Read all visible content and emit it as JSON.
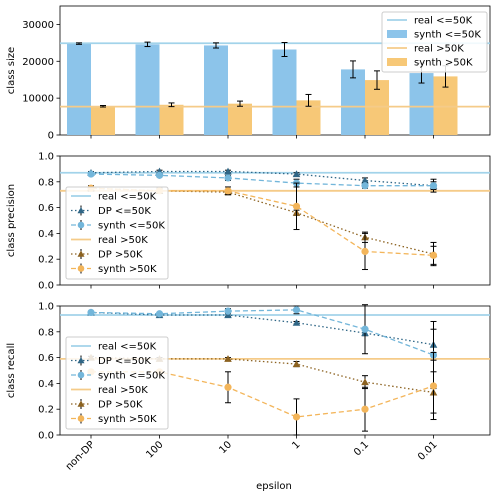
{
  "colors": {
    "blue_light": "#8cc4ea",
    "blue_line": "#a2d3ea",
    "orange_light": "#f7c877",
    "orange_line": "#f5cb89",
    "dp_blue": "#2f6686",
    "synth_blue": "#73b6da",
    "dp_orange": "#8c6220",
    "synth_orange": "#f3b55a",
    "grid": "#000000"
  },
  "xlabel": "epsilon",
  "categories": [
    "non-DP",
    "100",
    "10",
    "1",
    "0.1",
    "0.01"
  ],
  "chart_data": [
    {
      "type": "bar",
      "ylabel": "class size",
      "ylim": [
        0,
        35000
      ],
      "yticks": [
        "0",
        "10000",
        "20000",
        "30000"
      ],
      "ytick_values": [
        0,
        10000,
        20000,
        30000
      ],
      "legend_position": "top-right",
      "reference_lines": [
        {
          "name": "real <=50K",
          "value": 24900,
          "color": "#a2d3ea"
        },
        {
          "name": "real >50K",
          "value": 7700,
          "color": "#f5cb89"
        }
      ],
      "series": [
        {
          "name": "synth <=50K",
          "color": "#8cc4ea",
          "values": [
            24800,
            24600,
            24300,
            23200,
            17800,
            16800
          ],
          "errors": [
            200,
            600,
            700,
            1900,
            2300,
            2700
          ]
        },
        {
          "name": "synth >50K",
          "color": "#f7c877",
          "values": [
            7800,
            8200,
            8500,
            9400,
            14900,
            15900
          ],
          "errors": [
            200,
            500,
            700,
            1600,
            2500,
            2900
          ]
        }
      ]
    },
    {
      "type": "line",
      "ylabel": "class precision",
      "ylim": [
        0,
        1.0
      ],
      "yticks": [
        "0.0",
        "0.2",
        "0.4",
        "0.6",
        "0.8",
        "1.0"
      ],
      "ytick_values": [
        0,
        0.2,
        0.4,
        0.6,
        0.8,
        1.0
      ],
      "legend_position": "center-left",
      "reference_lines": [
        {
          "name": "real <=50K",
          "value": 0.87,
          "color": "#a2d3ea"
        },
        {
          "name": "real >50K",
          "value": 0.73,
          "color": "#f5cb89"
        }
      ],
      "series": [
        {
          "name": "DP <=50K",
          "marker": "triangle",
          "style": "dotted",
          "color": "#2f6686",
          "values": [
            0.87,
            0.88,
            0.88,
            0.86,
            0.81,
            0.77
          ],
          "errors": [
            0.01,
            0.01,
            0.01,
            0.01,
            0.02,
            0.03
          ]
        },
        {
          "name": "synth <=50K",
          "marker": "circle",
          "style": "dashed",
          "color": "#73b6da",
          "values": [
            0.86,
            0.85,
            0.83,
            0.79,
            0.77,
            0.77
          ],
          "errors": [
            0.01,
            0.01,
            0.02,
            0.03,
            0.02,
            0.05
          ]
        },
        {
          "name": "DP >50K",
          "marker": "triangle",
          "style": "dotted",
          "color": "#8c6220",
          "values": [
            0.75,
            0.73,
            0.72,
            0.56,
            0.37,
            0.24
          ],
          "errors": [
            0.01,
            0.02,
            0.02,
            0.02,
            0.04,
            0.09
          ]
        },
        {
          "name": "synth >50K",
          "marker": "circle",
          "style": "dashed",
          "color": "#f3b55a",
          "values": [
            0.75,
            0.73,
            0.73,
            0.61,
            0.26,
            0.23
          ],
          "errors": [
            0.02,
            0.02,
            0.03,
            0.18,
            0.14,
            0.07
          ]
        }
      ]
    },
    {
      "type": "line",
      "ylabel": "class recall",
      "ylim": [
        0,
        1.0
      ],
      "yticks": [
        "0.0",
        "0.2",
        "0.4",
        "0.6",
        "0.8",
        "1.0"
      ],
      "ytick_values": [
        0,
        0.2,
        0.4,
        0.6,
        0.8,
        1.0
      ],
      "legend_position": "center-left",
      "reference_lines": [
        {
          "name": "real <=50K",
          "value": 0.93,
          "color": "#a2d3ea"
        },
        {
          "name": "real >50K",
          "value": 0.59,
          "color": "#f5cb89"
        }
      ],
      "series": [
        {
          "name": "DP <=50K",
          "marker": "triangle",
          "style": "dotted",
          "color": "#2f6686",
          "values": [
            0.95,
            0.93,
            0.93,
            0.87,
            0.79,
            0.7
          ],
          "errors": [
            0.01,
            0.01,
            0.01,
            0.01,
            0.02,
            0.12
          ]
        },
        {
          "name": "synth <=50K",
          "marker": "circle",
          "style": "dashed",
          "color": "#73b6da",
          "values": [
            0.95,
            0.94,
            0.96,
            0.97,
            0.82,
            0.62
          ],
          "errors": [
            0.01,
            0.01,
            0.02,
            0.03,
            0.19,
            0.26
          ]
        },
        {
          "name": "DP >50K",
          "marker": "triangle",
          "style": "dotted",
          "color": "#8c6220",
          "values": [
            0.6,
            0.59,
            0.59,
            0.55,
            0.41,
            0.33
          ],
          "errors": [
            0.01,
            0.01,
            0.01,
            0.02,
            0.05,
            0.16
          ]
        },
        {
          "name": "synth >50K",
          "marker": "circle",
          "style": "dashed",
          "color": "#f3b55a",
          "values": [
            0.49,
            0.49,
            0.37,
            0.14,
            0.2,
            0.38
          ],
          "errors": [
            0.01,
            0.01,
            0.12,
            0.14,
            0.17,
            0.26
          ]
        }
      ]
    }
  ]
}
